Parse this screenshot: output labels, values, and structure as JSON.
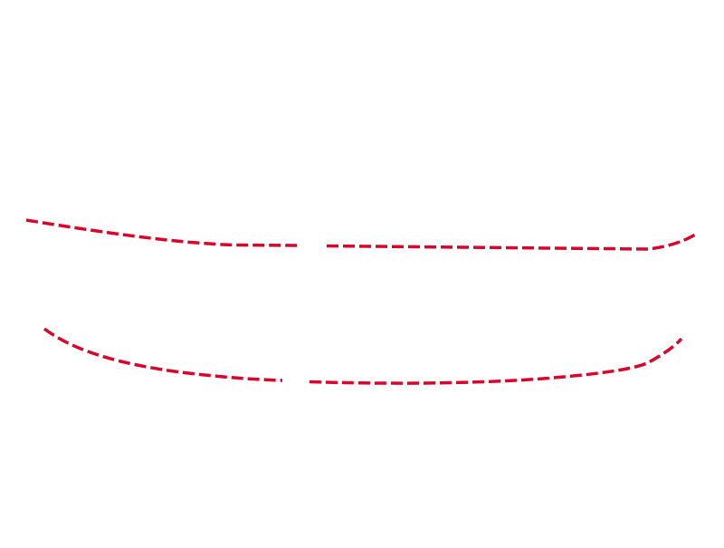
{
  "canvas": {
    "background": "#ffffff"
  },
  "curves": [
    {
      "name": "upper-dashed-curve",
      "style": "dashed",
      "color": "#d9062b"
    },
    {
      "name": "lower-dashed-curve",
      "style": "dashed",
      "color": "#d9062b"
    }
  ]
}
